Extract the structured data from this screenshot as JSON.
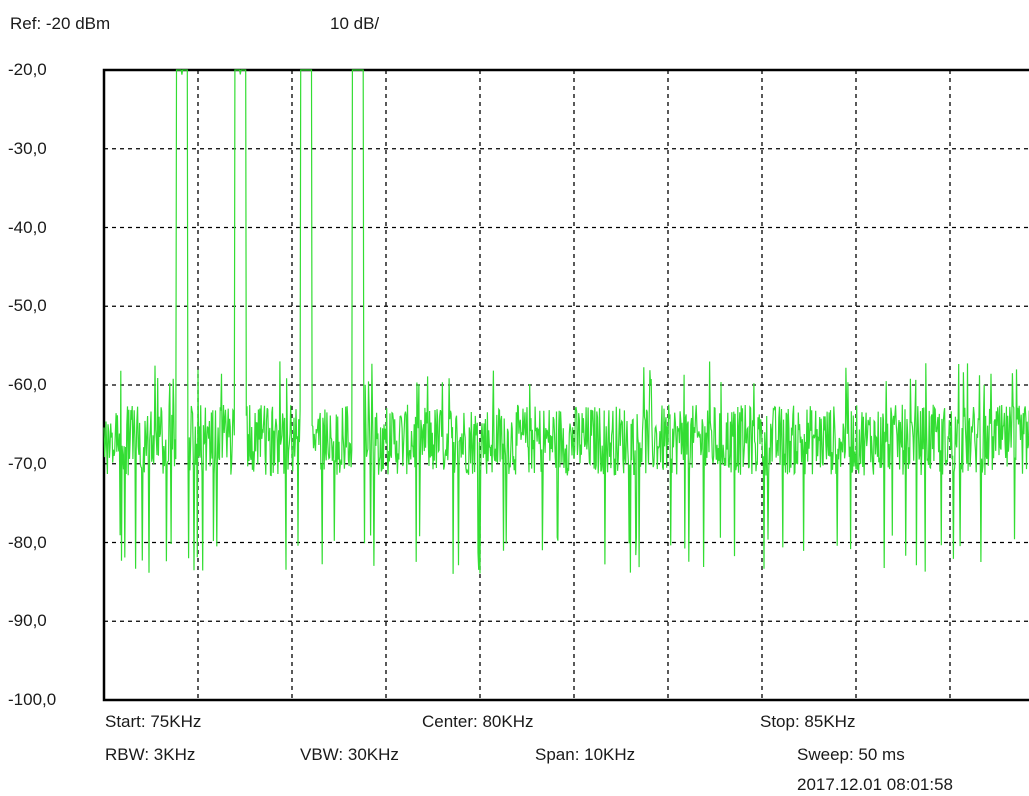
{
  "header": {
    "ref": "Ref: -20 dBm",
    "scale": "10 dB/"
  },
  "footer": {
    "start": "Start: 75KHz",
    "center": "Center: 80KHz",
    "stop": "Stop: 85KHz",
    "rbw": "RBW: 3KHz",
    "vbw": "VBW: 30KHz",
    "span": "Span: 10KHz",
    "sweep": "Sweep: 50  ms",
    "timestamp": "2017.12.01 08:01:58"
  },
  "colors": {
    "trace": "#33dd33",
    "grid": "#000000",
    "background": "#ffffff"
  },
  "chart_data": {
    "type": "line",
    "title": "",
    "xlabel": "",
    "ylabel": "",
    "ylim": [
      -100,
      -20
    ],
    "xlim": [
      75,
      85
    ],
    "x_unit": "KHz",
    "y_unit": "dBm",
    "grid": true,
    "y_ticks": [
      "-20,0",
      "-30,0",
      "-40,0",
      "-50,0",
      "-60,0",
      "-70,0",
      "-80,0",
      "-90,0",
      "-100,0"
    ],
    "series": [
      {
        "noise_floor_dbm": -67,
        "noise_range_dbm": [
          -84,
          -57
        ],
        "peaks": [
          {
            "x": 75.83,
            "y": -20
          },
          {
            "x": 76.45,
            "y": -20
          },
          {
            "x": 77.15,
            "y": -20
          },
          {
            "x": 77.7,
            "y": -20
          }
        ]
      }
    ]
  }
}
